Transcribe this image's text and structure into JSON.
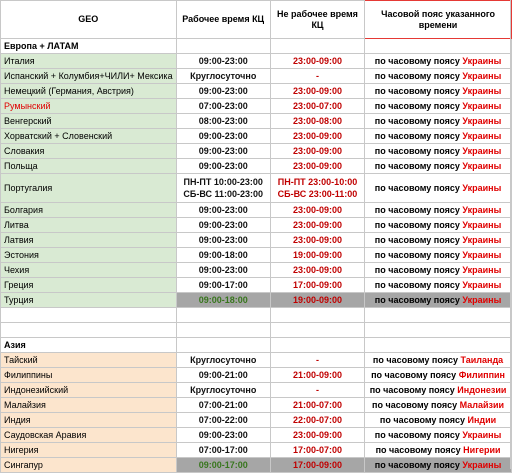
{
  "headers": {
    "geo": "GEO",
    "work": "Рабочее время КЦ",
    "off": "Не рабочее время КЦ",
    "tz": "Часовой пояс указанного времени"
  },
  "tz_prefix": "по часовому поясу",
  "sections": {
    "europe": "Европа +  ЛАТАМ",
    "asia": "Азия"
  },
  "europe_rows": [
    {
      "geo": "Италия",
      "work": "09:00-23:00",
      "off": "23:00-09:00",
      "tz": "Украины"
    },
    {
      "geo": "Испанский + Колумбия+ЧИЛИ+ Мексика",
      "work": "Круглосуточно",
      "off": "-",
      "tz": "Украины"
    },
    {
      "geo": "Немецкий (Германия, Австрия)",
      "work": "09:00-23:00",
      "off": "23:00-09:00",
      "tz": "Украины"
    },
    {
      "geo": "Румынский",
      "work": "07:00-23:00",
      "off": "23:00-07:00",
      "tz": "Украины"
    },
    {
      "geo": "Венгерский",
      "work": "08:00-23:00",
      "off": "23:00-08:00",
      "tz": "Украины"
    },
    {
      "geo": "Хорватский + Словенский",
      "work": "09:00-23:00",
      "off": "23:00-09:00",
      "tz": "Украины"
    },
    {
      "geo": "Словакия",
      "work": "09:00-23:00",
      "off": "23:00-09:00",
      "tz": "Украины"
    },
    {
      "geo": "Польща",
      "work": "09:00-23:00",
      "off": "23:00-09:00",
      "tz": "Украины"
    },
    {
      "geo": "Португалия",
      "work": "ПН-ПТ 10:00-23:00",
      "work2": "СБ-ВС 11:00-23:00",
      "off": "ПН-ПТ 23:00-10:00",
      "off2": "СБ-ВС 23:00-11:00",
      "tz": "Украины"
    },
    {
      "geo": "Болгария",
      "work": "09:00-23:00",
      "off": "23:00-09:00",
      "tz": "Украины"
    },
    {
      "geo": "Литва",
      "work": "09:00-23:00",
      "off": "23:00-09:00",
      "tz": "Украины"
    },
    {
      "geo": "Латвия",
      "work": "09:00-23:00",
      "off": "23:00-09:00",
      "tz": "Украины"
    },
    {
      "geo": "Эстония",
      "work": "09:00-18:00",
      "off": "19:00-09:00",
      "tz": "Украины"
    },
    {
      "geo": "Чехия",
      "work": "09:00-23:00",
      "off": "23:00-09:00",
      "tz": "Украины"
    },
    {
      "geo": "Греция",
      "work": "09:00-17:00",
      "off": "17:00-09:00",
      "tz": "Украины"
    },
    {
      "geo": "Турция",
      "work": "09:00-18:00",
      "off": "19:00-09:00",
      "tz": "Украины"
    }
  ],
  "asia_rows": [
    {
      "geo": "Тайский",
      "work": "Круглосуточно",
      "off": "-",
      "tz": "Таиланда"
    },
    {
      "geo": "Филиппины",
      "work": "09:00-21:00",
      "off": "21:00-09:00",
      "tz": "Филиппин"
    },
    {
      "geo": "Индонезийский",
      "work": "Круглосуточно",
      "off": "-",
      "tz": "Индонезии"
    },
    {
      "geo": "Малайзия",
      "work": "07:00-21:00",
      "off": "21:00-07:00",
      "tz": "Малайзии"
    },
    {
      "geo": "Индия",
      "work": "07:00-22:00",
      "off": "22:00-07:00",
      "tz": "Индии"
    },
    {
      "geo": "Саудовская Аравия",
      "work": "09:00-23:00",
      "off": "23:00-09:00",
      "tz": "Украины"
    },
    {
      "geo": "Нигерия",
      "work": "07:00-17:00",
      "off": "17:00-07:00",
      "tz": "Нигерии"
    },
    {
      "geo": "Сингапур",
      "work": "09:00-17:00",
      "off": "17:00-09:00",
      "tz": "Украины"
    }
  ]
}
